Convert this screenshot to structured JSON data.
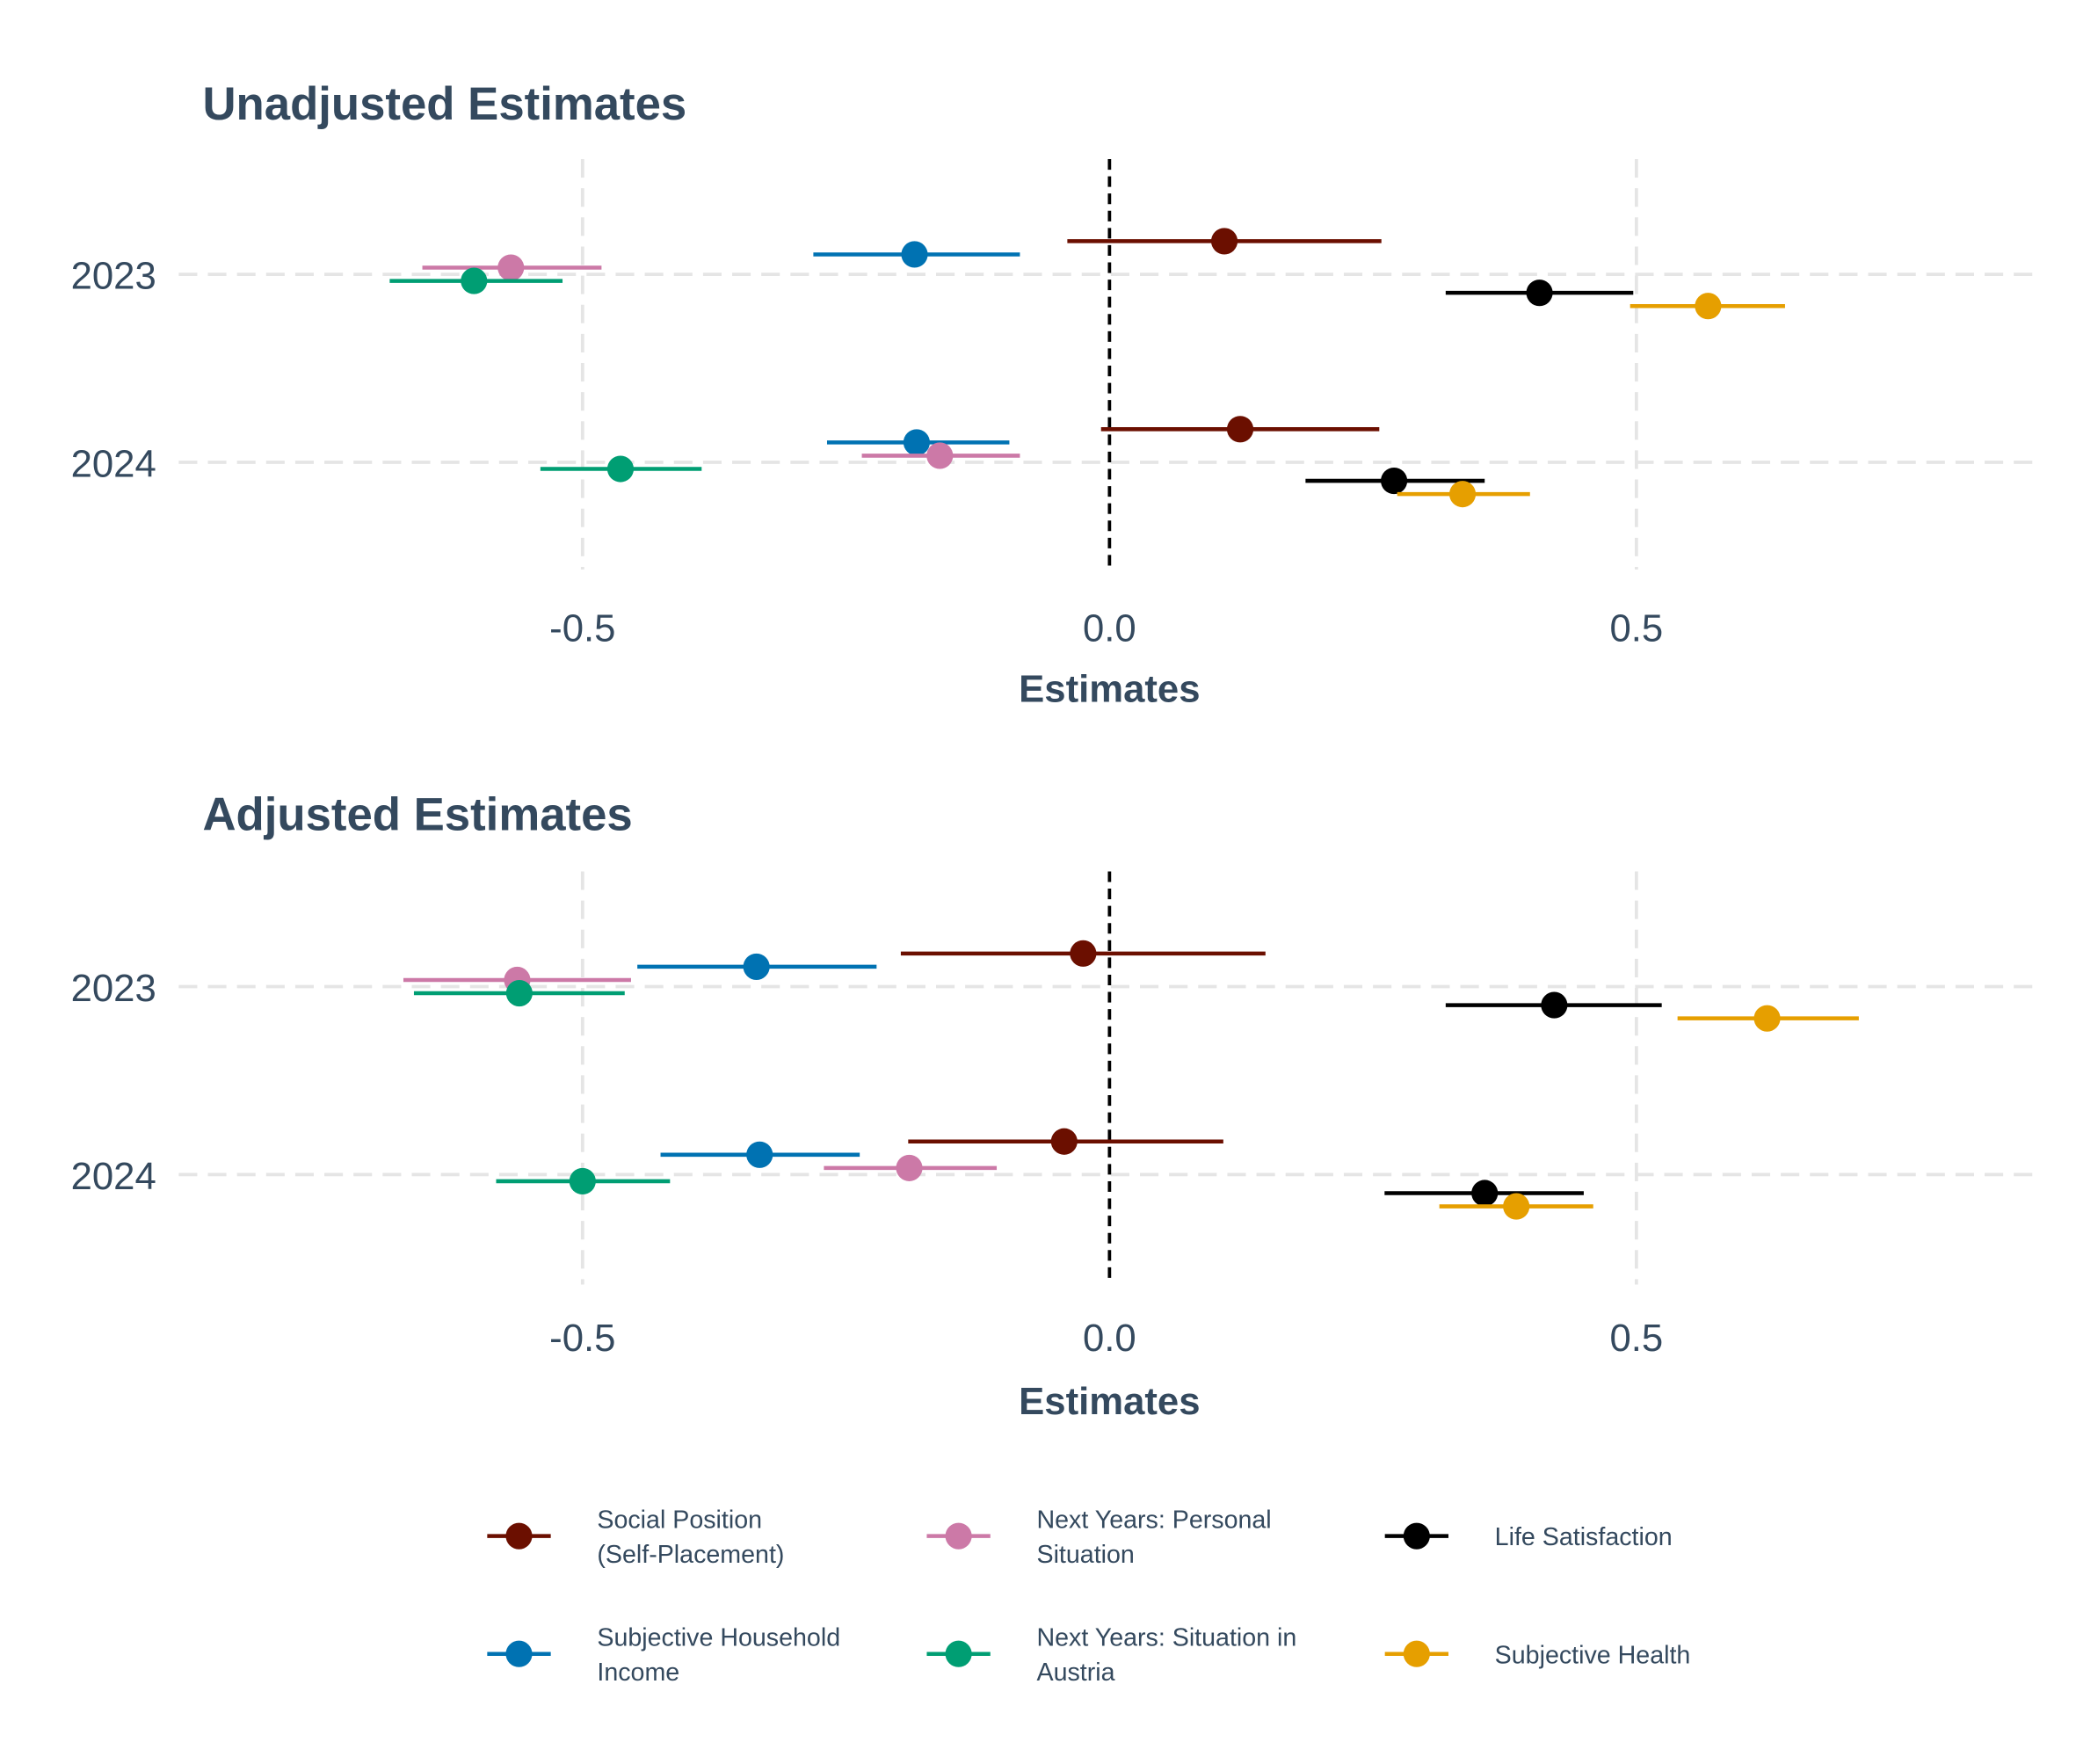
{
  "chart_data": [
    {
      "type": "forest",
      "title": "Unadjusted Estimates",
      "xlabel": "Estimates",
      "ylabel": "",
      "xlim": [
        -1.0,
        0.88
      ],
      "xticks": [
        "-0.5",
        "0.0",
        "0.5"
      ],
      "xtick_values": [
        -0.5,
        0.0,
        0.5
      ],
      "categories": [
        "2023",
        "2024"
      ],
      "reference_line": 0,
      "series": [
        {
          "name": "Social Position (Self-Placement)",
          "estimates": [
            0.109,
            0.124
          ],
          "ci_low": [
            -0.04,
            -0.008
          ],
          "ci_high": [
            0.258,
            0.256
          ]
        },
        {
          "name": "Subjective Household Income",
          "estimates": [
            -0.185,
            -0.183
          ],
          "ci_low": [
            -0.281,
            -0.268
          ],
          "ci_high": [
            -0.085,
            -0.095
          ]
        },
        {
          "name": "Next Years: Personal Situation",
          "estimates": [
            -0.568,
            -0.161
          ],
          "ci_low": [
            -0.652,
            -0.235
          ],
          "ci_high": [
            -0.482,
            -0.085
          ]
        },
        {
          "name": "Next Years: Situation in Austria",
          "estimates": [
            -0.603,
            -0.464
          ],
          "ci_low": [
            -0.683,
            -0.54
          ],
          "ci_high": [
            -0.519,
            -0.387
          ]
        },
        {
          "name": "Life Satisfaction",
          "estimates": [
            0.408,
            0.27
          ],
          "ci_low": [
            0.319,
            0.186
          ],
          "ci_high": [
            0.497,
            0.356
          ]
        },
        {
          "name": "Subjective Health",
          "estimates": [
            0.568,
            0.335
          ],
          "ci_low": [
            0.494,
            0.273
          ],
          "ci_high": [
            0.641,
            0.399
          ]
        }
      ]
    },
    {
      "type": "forest",
      "title": "Adjusted Estimates",
      "xlabel": "Estimates",
      "ylabel": "",
      "xlim": [
        -1.0,
        0.88
      ],
      "xticks": [
        "-0.5",
        "0.0",
        "0.5"
      ],
      "xtick_values": [
        -0.5,
        0.0,
        0.5
      ],
      "categories": [
        "2023",
        "2024"
      ],
      "reference_line": 0,
      "series": [
        {
          "name": "Social Position (Self-Placement)",
          "estimates": [
            -0.025,
            -0.043
          ],
          "ci_low": [
            -0.198,
            -0.191
          ],
          "ci_high": [
            0.148,
            0.108
          ]
        },
        {
          "name": "Subjective Household Income",
          "estimates": [
            -0.335,
            -0.332
          ],
          "ci_low": [
            -0.448,
            -0.426
          ],
          "ci_high": [
            -0.221,
            -0.237
          ]
        },
        {
          "name": "Next Years: Personal Situation",
          "estimates": [
            -0.562,
            -0.19
          ],
          "ci_low": [
            -0.67,
            -0.271
          ],
          "ci_high": [
            -0.454,
            -0.107
          ]
        },
        {
          "name": "Next Years: Situation in Austria",
          "estimates": [
            -0.56,
            -0.5
          ],
          "ci_low": [
            -0.66,
            -0.582
          ],
          "ci_high": [
            -0.46,
            -0.417
          ]
        },
        {
          "name": "Life Satisfaction",
          "estimates": [
            0.422,
            0.356
          ],
          "ci_low": [
            0.319,
            0.261
          ],
          "ci_high": [
            0.524,
            0.45
          ]
        },
        {
          "name": "Subjective Health",
          "estimates": [
            0.624,
            0.386
          ],
          "ci_low": [
            0.539,
            0.313
          ],
          "ci_high": [
            0.711,
            0.459
          ]
        }
      ]
    }
  ],
  "legend": {
    "position": "bottom",
    "items": [
      {
        "line1": "Social Position",
        "line2": "(Self-Placement)",
        "color": "#6b0f00"
      },
      {
        "line1": "Subjective Household",
        "line2": "Income",
        "color": "#0072b2"
      },
      {
        "line1": "Next Years: Personal",
        "line2": "Situation",
        "color": "#cc79a7"
      },
      {
        "line1": "Next Years: Situation in",
        "line2": "Austria",
        "color": "#009e73"
      },
      {
        "line1": "Life Satisfaction",
        "line2": "",
        "color": "#000000"
      },
      {
        "line1": "Subjective Health",
        "line2": "",
        "color": "#e69f00"
      }
    ]
  }
}
